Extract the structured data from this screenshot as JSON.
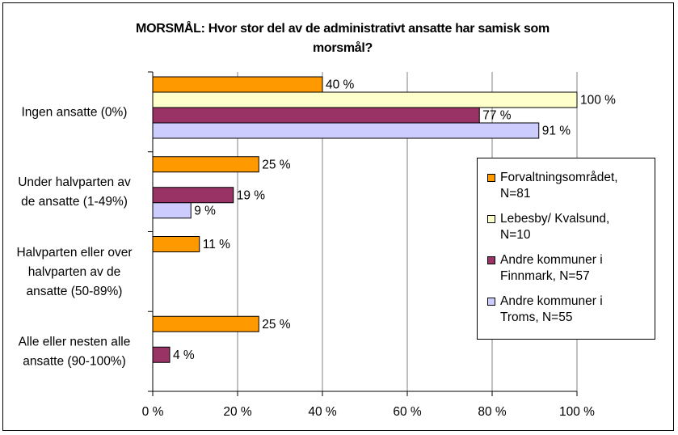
{
  "chart_data": {
    "type": "bar",
    "orientation": "horizontal",
    "title_line1": "MORSMÅL: Hvor stor del av de administrativt ansatte har samisk som",
    "title_line2": "morsmål?",
    "categories": [
      [
        "Ingen ansatte (0%)"
      ],
      [
        "Under halvparten av",
        "de ansatte (1-49%)"
      ],
      [
        "Halvparten eller over",
        "halvparten av de",
        "ansatte (50-89%)"
      ],
      [
        "Alle eller nesten alle",
        "ansatte (90-100%)"
      ]
    ],
    "series": [
      {
        "name_lines": [
          "Forvaltningsområdet,",
          "N=81"
        ],
        "color": "#ff9900",
        "values": [
          40,
          25,
          11,
          25
        ]
      },
      {
        "name_lines": [
          "Lebesby/ Kvalsund,",
          "N=10"
        ],
        "color": "#ffffcc",
        "values": [
          100,
          null,
          null,
          null
        ]
      },
      {
        "name_lines": [
          "Andre kommuner i",
          "Finnmark, N=57"
        ],
        "color": "#993366",
        "values": [
          77,
          19,
          null,
          4
        ]
      },
      {
        "name_lines": [
          "Andre kommuner i",
          "Troms, N=55"
        ],
        "color": "#ccccff",
        "values": [
          91,
          9,
          null,
          null
        ]
      }
    ],
    "value_labels": [
      [
        "40 %",
        "25 %",
        "11 %",
        "25 %"
      ],
      [
        "100 %",
        null,
        null,
        null
      ],
      [
        "77 %",
        "19 %",
        null,
        "4 %"
      ],
      [
        "91 %",
        "9 %",
        null,
        null
      ]
    ],
    "xticks": [
      "0 %",
      "20 %",
      "40 %",
      "60 %",
      "80 %",
      "100 %"
    ],
    "xlim": [
      0,
      100
    ],
    "grid": true,
    "legend_position": "right"
  }
}
